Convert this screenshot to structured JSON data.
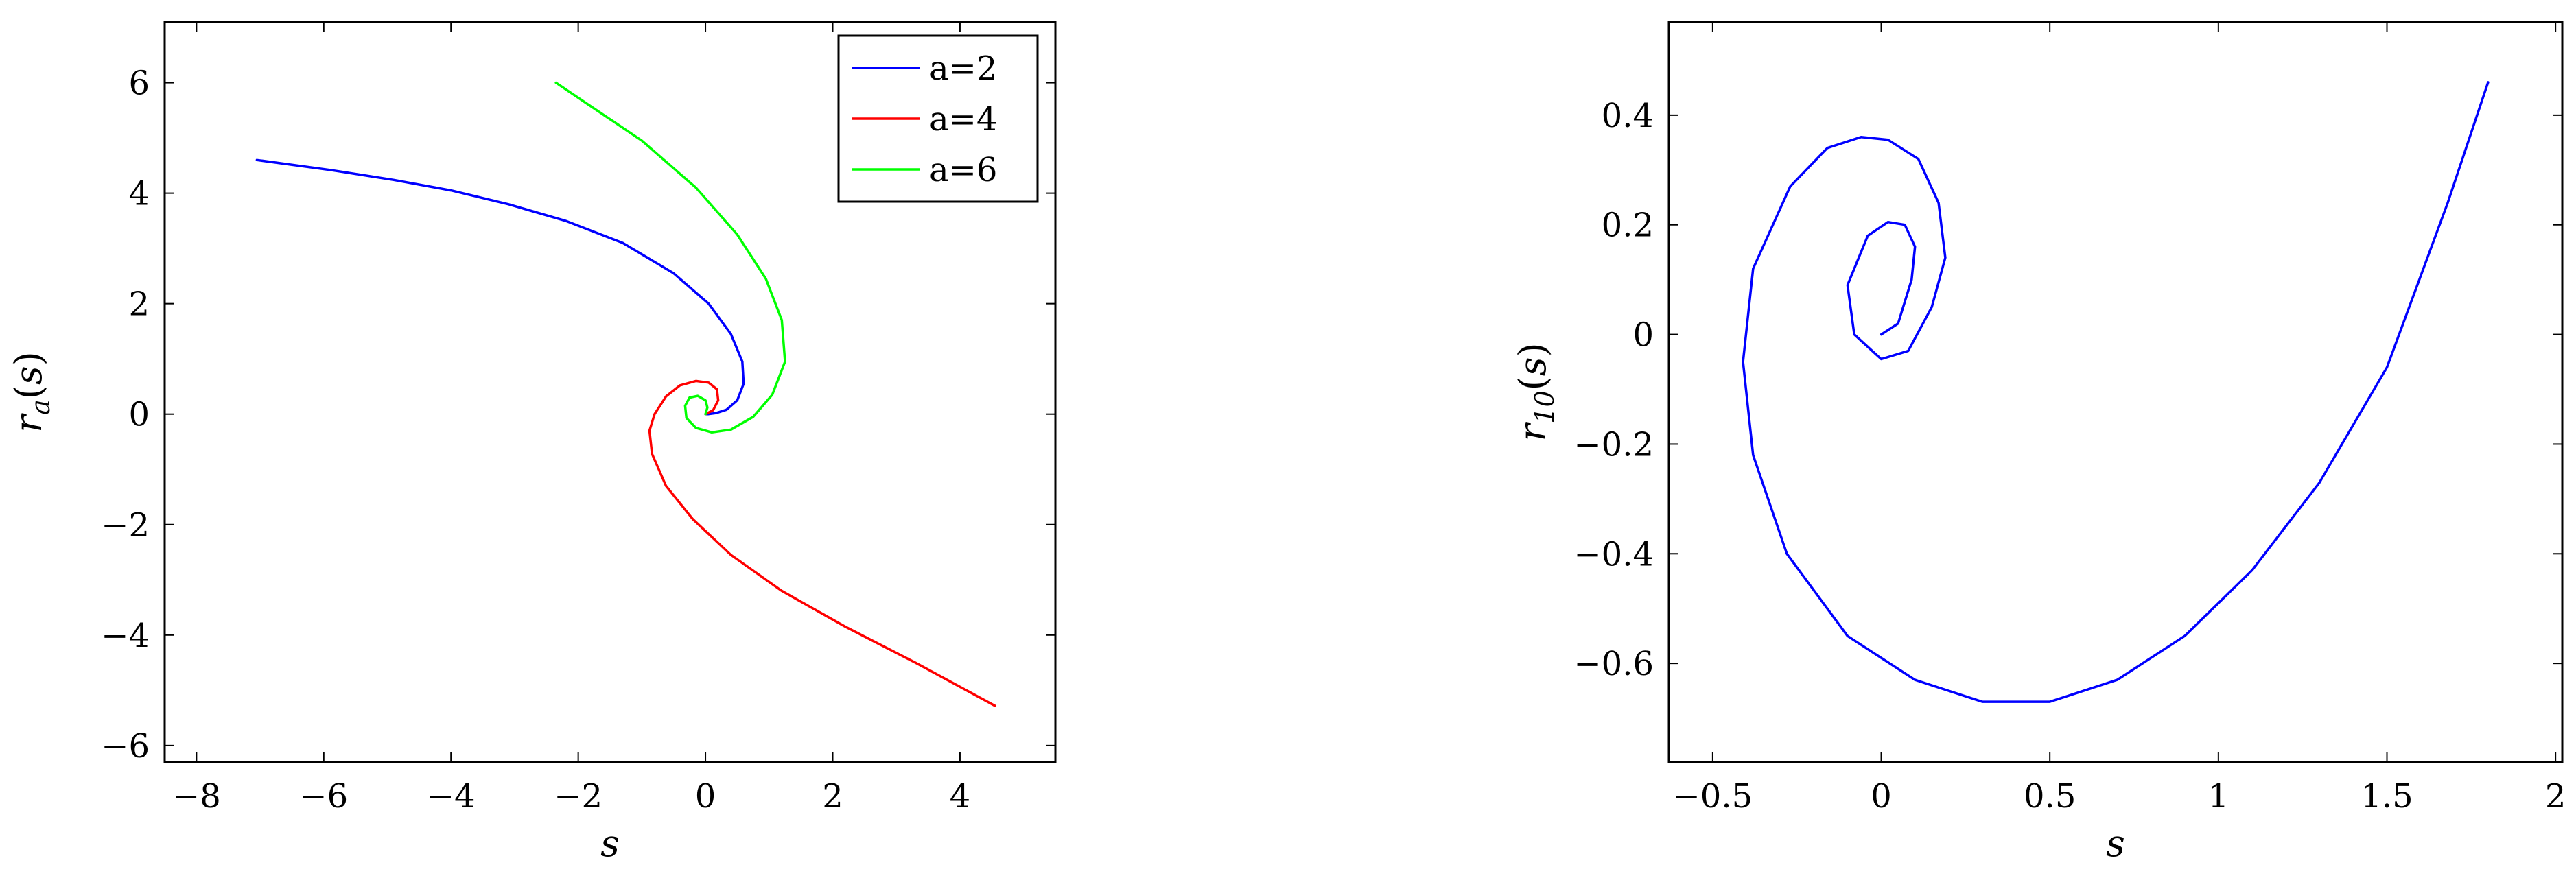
{
  "chart_data": [
    {
      "type": "line",
      "xlabel": "s",
      "ylabel": "r_a(s)",
      "xlim": [
        -8.5,
        5.5
      ],
      "ylim": [
        -6.3,
        7.1
      ],
      "xticks": [
        -8,
        -6,
        -4,
        -2,
        0,
        2,
        4
      ],
      "yticks": [
        -6,
        -4,
        -2,
        0,
        2,
        4,
        6
      ],
      "xtick_labels": [
        "−8",
        "−6",
        "−4",
        "−2",
        "0",
        "2",
        "4"
      ],
      "ytick_labels": [
        "−6",
        "−4",
        "−2",
        "0",
        "2",
        "4",
        "6"
      ],
      "legend_position": "top-right",
      "grid": false,
      "series": [
        {
          "name": "a=2",
          "color": "#0000ff",
          "points": [
            [
              -7.05,
              4.6
            ],
            [
              -5.9,
              4.42
            ],
            [
              -4.9,
              4.24
            ],
            [
              -4.0,
              4.05
            ],
            [
              -3.1,
              3.8
            ],
            [
              -2.2,
              3.5
            ],
            [
              -1.3,
              3.1
            ],
            [
              -0.5,
              2.55
            ],
            [
              0.05,
              2.0
            ],
            [
              0.4,
              1.45
            ],
            [
              0.58,
              0.95
            ],
            [
              0.6,
              0.55
            ],
            [
              0.5,
              0.25
            ],
            [
              0.33,
              0.08
            ],
            [
              0.17,
              0.02
            ],
            [
              0.05,
              0.0
            ],
            [
              0.0,
              0.0
            ]
          ]
        },
        {
          "name": "a=4",
          "color": "#ff0000",
          "points": [
            [
              0.0,
              0.0
            ],
            [
              0.12,
              0.07
            ],
            [
              0.2,
              0.25
            ],
            [
              0.18,
              0.45
            ],
            [
              0.05,
              0.57
            ],
            [
              -0.15,
              0.6
            ],
            [
              -0.4,
              0.52
            ],
            [
              -0.62,
              0.32
            ],
            [
              -0.8,
              0.0
            ],
            [
              -0.88,
              -0.3
            ],
            [
              -0.84,
              -0.72
            ],
            [
              -0.62,
              -1.3
            ],
            [
              -0.2,
              -1.9
            ],
            [
              0.4,
              -2.55
            ],
            [
              1.2,
              -3.2
            ],
            [
              2.2,
              -3.85
            ],
            [
              3.3,
              -4.5
            ],
            [
              4.55,
              -5.28
            ]
          ]
        },
        {
          "name": "a=6",
          "color": "#00ff00",
          "points": [
            [
              0.0,
              0.0
            ],
            [
              0.03,
              0.12
            ],
            [
              0.0,
              0.25
            ],
            [
              -0.12,
              0.33
            ],
            [
              -0.25,
              0.3
            ],
            [
              -0.32,
              0.15
            ],
            [
              -0.3,
              -0.07
            ],
            [
              -0.15,
              -0.25
            ],
            [
              0.1,
              -0.33
            ],
            [
              0.4,
              -0.28
            ],
            [
              0.75,
              -0.05
            ],
            [
              1.05,
              0.35
            ],
            [
              1.25,
              0.95
            ],
            [
              1.2,
              1.7
            ],
            [
              0.95,
              2.45
            ],
            [
              0.5,
              3.25
            ],
            [
              -0.15,
              4.1
            ],
            [
              -1.0,
              4.95
            ],
            [
              -2.35,
              6.0
            ]
          ]
        }
      ]
    },
    {
      "type": "line",
      "xlabel": "s",
      "ylabel": "r_10(s)",
      "xlim": [
        -0.63,
        2.02
      ],
      "ylim": [
        -0.78,
        0.57
      ],
      "xticks": [
        -0.5,
        0,
        0.5,
        1,
        1.5,
        2
      ],
      "yticks": [
        -0.6,
        -0.4,
        -0.2,
        0,
        0.2,
        0.4
      ],
      "xtick_labels": [
        "−0.5",
        "0",
        "0.5",
        "1",
        "1.5",
        "2"
      ],
      "ytick_labels": [
        "−0.6",
        "−0.4",
        "−0.2",
        "0",
        "0.2",
        "0.4"
      ],
      "grid": false,
      "series": [
        {
          "color": "#0000ff",
          "points": [
            [
              0.0,
              0.0
            ],
            [
              0.05,
              0.02
            ],
            [
              0.09,
              0.1
            ],
            [
              0.1,
              0.16
            ],
            [
              0.07,
              0.2
            ],
            [
              0.02,
              0.205
            ],
            [
              -0.04,
              0.18
            ],
            [
              -0.1,
              0.09
            ],
            [
              -0.08,
              0.0
            ],
            [
              0.0,
              -0.045
            ],
            [
              0.08,
              -0.03
            ],
            [
              0.15,
              0.05
            ],
            [
              0.19,
              0.14
            ],
            [
              0.17,
              0.24
            ],
            [
              0.11,
              0.32
            ],
            [
              0.02,
              0.355
            ],
            [
              -0.06,
              0.36
            ],
            [
              -0.16,
              0.34
            ],
            [
              -0.27,
              0.27
            ],
            [
              -0.38,
              0.12
            ],
            [
              -0.41,
              -0.05
            ],
            [
              -0.38,
              -0.22
            ],
            [
              -0.28,
              -0.4
            ],
            [
              -0.1,
              -0.55
            ],
            [
              0.1,
              -0.63
            ],
            [
              0.3,
              -0.67
            ],
            [
              0.5,
              -0.67
            ],
            [
              0.7,
              -0.63
            ],
            [
              0.9,
              -0.55
            ],
            [
              1.1,
              -0.43
            ],
            [
              1.3,
              -0.27
            ],
            [
              1.5,
              -0.06
            ],
            [
              1.68,
              0.24
            ],
            [
              1.8,
              0.46
            ]
          ]
        }
      ]
    }
  ]
}
